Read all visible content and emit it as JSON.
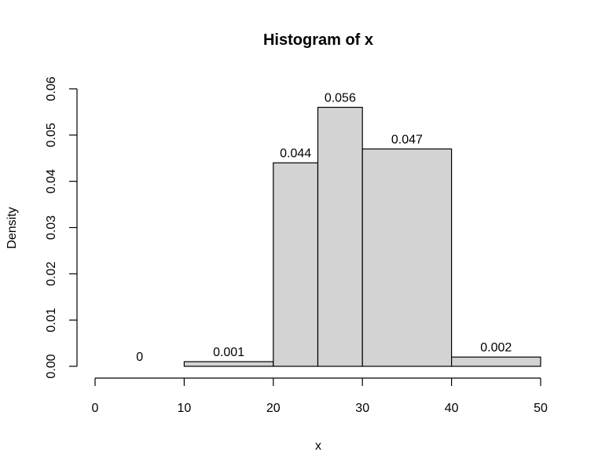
{
  "chart_data": {
    "type": "bar",
    "title": "Histogram of x",
    "xlabel": "x",
    "ylabel": "Density",
    "bins": [
      {
        "start": 0,
        "end": 10,
        "density": 0.0,
        "label": "0"
      },
      {
        "start": 10,
        "end": 20,
        "density": 0.001,
        "label": "0.001"
      },
      {
        "start": 20,
        "end": 25,
        "density": 0.044,
        "label": "0.044"
      },
      {
        "start": 25,
        "end": 30,
        "density": 0.056,
        "label": "0.056"
      },
      {
        "start": 30,
        "end": 40,
        "density": 0.047,
        "label": "0.047"
      },
      {
        "start": 40,
        "end": 50,
        "density": 0.002,
        "label": "0.002"
      }
    ],
    "xlim": [
      0,
      50
    ],
    "ylim": [
      0,
      0.06
    ],
    "xticks": [
      0,
      10,
      20,
      30,
      40,
      50
    ],
    "xtick_labels": [
      "0",
      "10",
      "20",
      "30",
      "40",
      "50"
    ],
    "yticks": [
      0,
      0.01,
      0.02,
      0.03,
      0.04,
      0.05,
      0.06
    ],
    "ytick_labels": [
      "0.00",
      "0.01",
      "0.02",
      "0.03",
      "0.04",
      "0.05",
      "0.06"
    ],
    "colors": {
      "bar_fill": "#d3d3d3",
      "bar_stroke": "#000000"
    },
    "grid": false
  }
}
